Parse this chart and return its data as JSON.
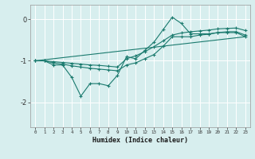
{
  "xlabel": "Humidex (Indice chaleur)",
  "bg_color": "#d7eeee",
  "grid_color": "#ffffff",
  "line_color": "#1a7a6e",
  "x_ticks": [
    0,
    1,
    2,
    3,
    4,
    5,
    6,
    7,
    8,
    9,
    10,
    11,
    12,
    13,
    14,
    15,
    16,
    17,
    18,
    19,
    20,
    21,
    22,
    23
  ],
  "ylim": [
    -2.6,
    0.35
  ],
  "xlim": [
    -0.5,
    23.5
  ],
  "series1_x": [
    0,
    1,
    2,
    3,
    4,
    5,
    6,
    7,
    8,
    9,
    10,
    11,
    12,
    13,
    14,
    15,
    16,
    17,
    18,
    19,
    20,
    21,
    22,
    23
  ],
  "series1_y": [
    -1.0,
    -1.0,
    -1.1,
    -1.1,
    -1.4,
    -1.85,
    -1.55,
    -1.55,
    -1.6,
    -1.35,
    -0.9,
    -0.95,
    -0.75,
    -0.55,
    -0.25,
    0.05,
    -0.1,
    -0.35,
    -0.35,
    -0.35,
    -0.32,
    -0.32,
    -0.32,
    -0.42
  ],
  "series2_x": [
    0,
    1,
    2,
    3,
    4,
    5,
    6,
    7,
    8,
    9,
    10,
    11,
    12,
    13,
    14,
    15,
    16,
    17,
    18,
    19,
    20,
    21,
    22,
    23
  ],
  "series2_y": [
    -1.0,
    -1.0,
    -1.05,
    -1.08,
    -1.12,
    -1.15,
    -1.18,
    -1.2,
    -1.22,
    -1.24,
    -1.1,
    -1.05,
    -0.95,
    -0.85,
    -0.65,
    -0.42,
    -0.42,
    -0.42,
    -0.38,
    -0.36,
    -0.32,
    -0.3,
    -0.3,
    -0.38
  ],
  "series3_x": [
    0,
    1,
    2,
    3,
    4,
    5,
    6,
    7,
    8,
    9,
    10,
    11,
    12,
    13,
    14,
    15,
    16,
    17,
    18,
    19,
    20,
    21,
    22,
    23
  ],
  "series3_y": [
    -1.0,
    -1.0,
    -1.02,
    -1.04,
    -1.06,
    -1.08,
    -1.1,
    -1.11,
    -1.13,
    -1.15,
    -0.95,
    -0.88,
    -0.78,
    -0.66,
    -0.52,
    -0.38,
    -0.33,
    -0.3,
    -0.28,
    -0.26,
    -0.23,
    -0.22,
    -0.21,
    -0.27
  ],
  "series4_x": [
    0,
    23
  ],
  "series4_y": [
    -1.0,
    -0.42
  ]
}
